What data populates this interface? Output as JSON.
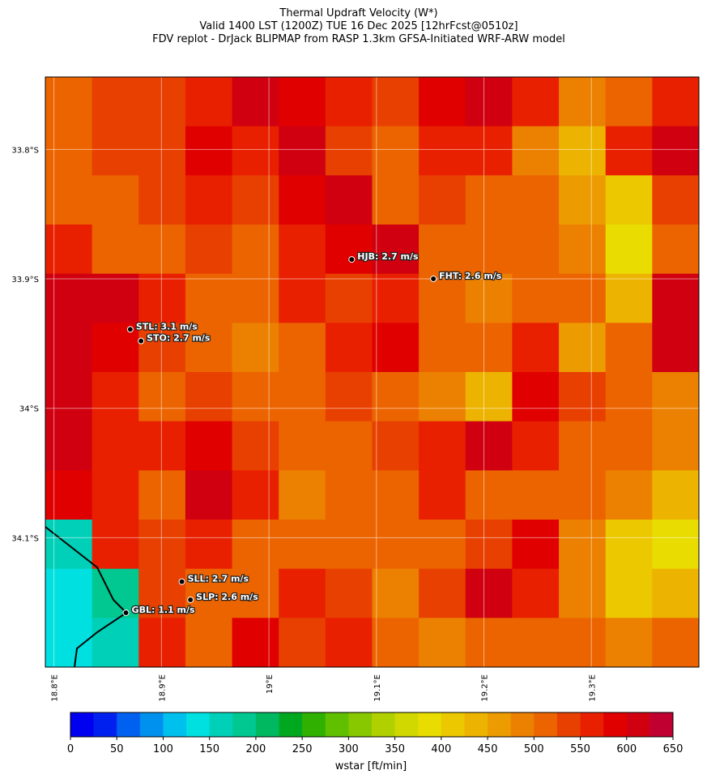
{
  "title": [
    "Thermal Updraft Velocity (W*)",
    "Valid 1400 LST (1200Z) TUE 16 Dec 2025 [12hrFcst@0510z]",
    "FDV replot - DrJack BLIPMAP from RASP 1.3km GFSA-Initiated WRF-ARW model"
  ],
  "map": {
    "xlim": [
      18.792,
      19.4
    ],
    "ylim": [
      -34.2,
      -33.744
    ],
    "xticks": [
      {
        "value": 18.8,
        "label": "18.8°E"
      },
      {
        "value": 18.9,
        "label": "18.9°E"
      },
      {
        "value": 19.0,
        "label": "19°E"
      },
      {
        "value": 19.1,
        "label": "19.1°E"
      },
      {
        "value": 19.2,
        "label": "19.2°E"
      },
      {
        "value": 19.3,
        "label": "19.3°E"
      }
    ],
    "yticks": [
      {
        "value": -33.8,
        "label": "33.8°S"
      },
      {
        "value": -33.9,
        "label": "33.9°S"
      },
      {
        "value": -34.0,
        "label": "34°S"
      },
      {
        "value": -34.1,
        "label": "34.1°S"
      }
    ],
    "grid_values": [
      [
        520,
        530,
        540,
        560,
        600,
        580,
        560,
        540,
        580,
        600,
        560,
        480,
        520,
        560
      ],
      [
        520,
        540,
        530,
        580,
        560,
        600,
        540,
        520,
        560,
        560,
        480,
        440,
        560,
        600
      ],
      [
        520,
        520,
        540,
        560,
        540,
        580,
        600,
        520,
        540,
        520,
        500,
        460,
        420,
        540
      ],
      [
        560,
        520,
        500,
        540,
        520,
        560,
        580,
        600,
        520,
        500,
        520,
        480,
        380,
        520
      ],
      [
        600,
        620,
        560,
        520,
        500,
        560,
        540,
        560,
        520,
        480,
        500,
        500,
        440,
        600
      ],
      [
        620,
        580,
        540,
        520,
        480,
        520,
        560,
        580,
        520,
        500,
        560,
        460,
        520,
        600
      ],
      [
        600,
        560,
        520,
        540,
        520,
        500,
        540,
        520,
        480,
        440,
        580,
        540,
        500,
        480
      ],
      [
        600,
        560,
        560,
        580,
        540,
        520,
        520,
        540,
        560,
        600,
        560,
        520,
        500,
        480
      ],
      [
        580,
        560,
        520,
        600,
        560,
        480,
        500,
        520,
        560,
        520,
        520,
        500,
        480,
        440
      ],
      [
        150,
        560,
        540,
        560,
        520,
        520,
        520,
        500,
        500,
        540,
        580,
        480,
        420,
        380
      ],
      [
        140,
        180,
        540,
        520,
        520,
        560,
        540,
        480,
        540,
        600,
        560,
        480,
        420,
        440
      ],
      [
        140,
        160,
        560,
        520,
        580,
        540,
        560,
        520,
        480,
        500,
        520,
        500,
        480,
        500
      ]
    ],
    "stations": [
      {
        "label": "STL: 3.1 m/s",
        "lon": 18.871,
        "lat": -33.939
      },
      {
        "label": "STO: 2.7 m/s",
        "lon": 18.881,
        "lat": -33.948
      },
      {
        "label": "HJB: 2.7 m/s",
        "lon": 19.077,
        "lat": -33.885
      },
      {
        "label": "FHT: 2.6 m/s",
        "lon": 19.153,
        "lat": -33.9
      },
      {
        "label": "SLL: 2.7 m/s",
        "lon": 18.919,
        "lat": -34.134
      },
      {
        "label": "SLP: 2.6 m/s",
        "lon": 18.927,
        "lat": -34.148
      },
      {
        "label": "GBL: 1.1 m/s",
        "lon": 18.867,
        "lat": -34.158
      }
    ]
  },
  "colorbar": {
    "label": "wstar [ft/min]",
    "lim": [
      0,
      650
    ],
    "step": 25,
    "ticks": [
      0,
      50,
      100,
      150,
      200,
      250,
      300,
      350,
      400,
      450,
      500,
      550,
      600,
      650
    ],
    "colors": [
      "#0000f0",
      "#0020f0",
      "#0060f0",
      "#0090ee",
      "#00c0ee",
      "#00e0e0",
      "#00d0b8",
      "#00c890",
      "#00b860",
      "#00a820",
      "#30b000",
      "#60c000",
      "#88c800",
      "#b0d000",
      "#d0d800",
      "#e8dc00",
      "#ecc800",
      "#ecb400",
      "#ec9c00",
      "#ec8000",
      "#ec6400",
      "#e84000",
      "#e82000",
      "#e00000",
      "#d00010",
      "#c00030"
    ]
  }
}
